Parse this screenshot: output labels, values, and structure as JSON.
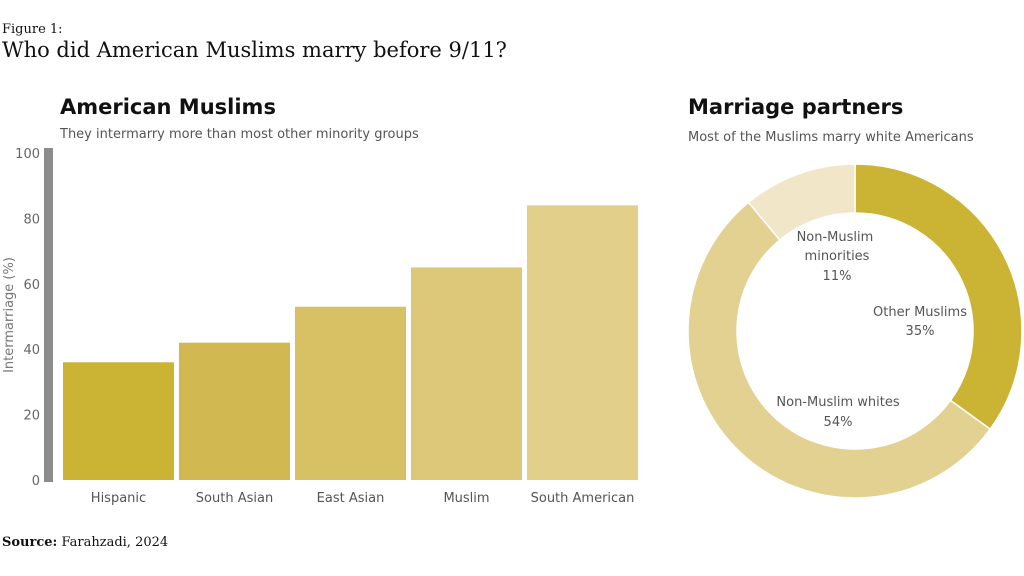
{
  "figure": {
    "label": "Figure 1:",
    "title": "Who did American Muslims marry before 9/11?"
  },
  "source": {
    "label": "Source:",
    "text": "Farahzadi, 2024"
  },
  "chart_data": [
    {
      "type": "bar",
      "title": "American Muslims",
      "subtitle": "They intermarry more than most other minority groups",
      "ylabel": "Intermarriage (%)",
      "xlabel": "",
      "ylim": [
        0,
        100
      ],
      "yticks": [
        0,
        20,
        40,
        60,
        80,
        100
      ],
      "categories": [
        "Hispanic",
        "South Asian",
        "East Asian",
        "Muslim",
        "South American"
      ],
      "values": [
        36,
        42,
        53,
        65,
        84
      ],
      "colors": [
        "#cbb333",
        "#d2b850",
        "#d8c065",
        "#dcc878",
        "#e2d08a"
      ],
      "grid": false
    },
    {
      "type": "pie",
      "style": "donut",
      "title": "Marriage partners",
      "subtitle": "Most of the Muslims marry white Americans",
      "slices": [
        {
          "label": "Other Muslims",
          "value": 35,
          "display": "35%",
          "color": "#cbb333"
        },
        {
          "label": "Non-Muslim whites",
          "value": 54,
          "display": "54%",
          "color": "#e2d190"
        },
        {
          "label": "Non-Muslim minorities",
          "value": 11,
          "display": "11%",
          "color": "#f1e7c8"
        }
      ]
    }
  ]
}
